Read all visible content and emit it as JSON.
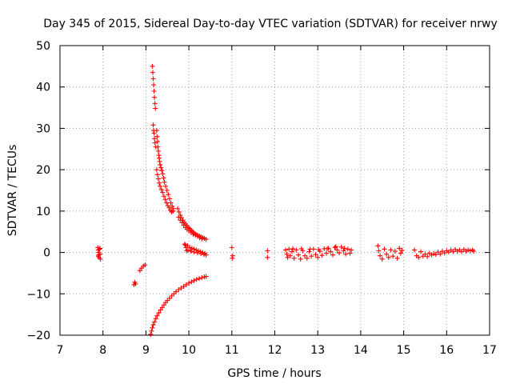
{
  "chart_data": {
    "type": "scatter",
    "title": "Day 345 of 2015, Sidereal Day-to-day VTEC variation (SDTVAR) for receiver nrwy",
    "xlabel": "GPS time / hours",
    "ylabel": "SDTVAR / TECUs",
    "xlim": [
      7,
      17
    ],
    "ylim": [
      -20,
      50
    ],
    "xticks": [
      7,
      8,
      9,
      10,
      11,
      12,
      13,
      14,
      15,
      16,
      17
    ],
    "yticks": [
      -20,
      -10,
      0,
      10,
      20,
      30,
      40,
      50
    ],
    "grid": true,
    "marker": "+",
    "color": "#ff0000",
    "series": [
      {
        "name": "nrwy",
        "points": [
          [
            7.88,
            1.2
          ],
          [
            7.89,
            0.6
          ],
          [
            7.9,
            0.0
          ],
          [
            7.9,
            -0.6
          ],
          [
            7.91,
            -1.2
          ],
          [
            7.92,
            0.8
          ],
          [
            7.93,
            -0.4
          ],
          [
            7.94,
            -1.6
          ],
          [
            7.93,
            1.0
          ],
          [
            7.89,
            -0.9
          ],
          [
            8.72,
            -7.8
          ],
          [
            8.74,
            -7.2
          ],
          [
            8.76,
            -7.6
          ],
          [
            8.86,
            -4.4
          ],
          [
            8.9,
            -3.8
          ],
          [
            8.94,
            -3.3
          ],
          [
            8.98,
            -3.0
          ],
          [
            9.15,
            45.0
          ],
          [
            9.16,
            43.5
          ],
          [
            9.17,
            42.0
          ],
          [
            9.18,
            40.5
          ],
          [
            9.19,
            39.0
          ],
          [
            9.2,
            37.5
          ],
          [
            9.21,
            36.0
          ],
          [
            9.22,
            34.8
          ],
          [
            9.17,
            30.8
          ],
          [
            9.18,
            29.5
          ],
          [
            9.19,
            28.8
          ],
          [
            9.2,
            27.5
          ],
          [
            9.21,
            26.5
          ],
          [
            9.23,
            25.5
          ],
          [
            9.25,
            29.5
          ],
          [
            9.26,
            28.0
          ],
          [
            9.27,
            26.8
          ],
          [
            9.28,
            25.5
          ],
          [
            9.29,
            24.5
          ],
          [
            9.3,
            23.5
          ],
          [
            9.31,
            22.8
          ],
          [
            9.32,
            22.0
          ],
          [
            9.33,
            21.2
          ],
          [
            9.35,
            20.5
          ],
          [
            9.37,
            19.8
          ],
          [
            9.39,
            19.0
          ],
          [
            9.25,
            20.0
          ],
          [
            9.27,
            18.8
          ],
          [
            9.29,
            17.8
          ],
          [
            9.31,
            16.8
          ],
          [
            9.33,
            16.0
          ],
          [
            9.36,
            15.2
          ],
          [
            9.39,
            14.5
          ],
          [
            9.42,
            13.6
          ],
          [
            9.45,
            12.8
          ],
          [
            9.41,
            18.0
          ],
          [
            9.43,
            17.0
          ],
          [
            9.46,
            16.0
          ],
          [
            9.49,
            15.0
          ],
          [
            9.52,
            14.0
          ],
          [
            9.55,
            13.0
          ],
          [
            9.58,
            12.0
          ],
          [
            9.61,
            11.2
          ],
          [
            9.64,
            10.6
          ],
          [
            9.48,
            12.0
          ],
          [
            9.51,
            11.3
          ],
          [
            9.54,
            10.8
          ],
          [
            9.57,
            10.2
          ],
          [
            9.6,
            9.8
          ],
          [
            9.63,
            10.0
          ],
          [
            9.74,
            10.6
          ],
          [
            9.77,
            9.8
          ],
          [
            9.8,
            9.0
          ],
          [
            9.83,
            8.4
          ],
          [
            9.86,
            7.8
          ],
          [
            9.89,
            7.3
          ],
          [
            9.92,
            6.9
          ],
          [
            9.95,
            6.5
          ],
          [
            9.98,
            6.1
          ],
          [
            10.01,
            5.8
          ],
          [
            10.04,
            5.5
          ],
          [
            10.07,
            5.2
          ],
          [
            10.1,
            4.9
          ],
          [
            10.13,
            4.6
          ],
          [
            10.16,
            4.4
          ],
          [
            10.2,
            4.2
          ],
          [
            10.24,
            4.0
          ],
          [
            10.28,
            3.8
          ],
          [
            10.32,
            3.6
          ],
          [
            10.36,
            3.4
          ],
          [
            10.4,
            3.2
          ],
          [
            9.76,
            8.5
          ],
          [
            9.8,
            7.8
          ],
          [
            9.84,
            7.2
          ],
          [
            9.88,
            6.6
          ],
          [
            9.92,
            6.0
          ],
          [
            9.96,
            5.6
          ],
          [
            10.0,
            5.2
          ],
          [
            10.05,
            4.8
          ],
          [
            10.1,
            4.4
          ],
          [
            10.15,
            4.2
          ],
          [
            10.2,
            3.9
          ],
          [
            10.25,
            3.6
          ],
          [
            10.3,
            3.3
          ],
          [
            9.9,
            2.0
          ],
          [
            9.93,
            1.2
          ],
          [
            9.95,
            0.4
          ],
          [
            9.92,
            1.8
          ],
          [
            9.97,
            1.6
          ],
          [
            10.02,
            1.2
          ],
          [
            10.07,
            1.0
          ],
          [
            10.12,
            0.8
          ],
          [
            10.17,
            0.6
          ],
          [
            10.22,
            0.4
          ],
          [
            10.27,
            0.2
          ],
          [
            10.32,
            0.0
          ],
          [
            10.37,
            -0.2
          ],
          [
            9.98,
            0.5
          ],
          [
            10.05,
            0.3
          ],
          [
            10.12,
            0.1
          ],
          [
            10.2,
            -0.1
          ],
          [
            10.28,
            -0.3
          ],
          [
            10.35,
            -0.5
          ],
          [
            10.4,
            -0.6
          ],
          [
            9.11,
            -19.8
          ],
          [
            9.13,
            -19.0
          ],
          [
            9.15,
            -18.2
          ],
          [
            9.17,
            -17.5
          ],
          [
            9.2,
            -16.8
          ],
          [
            9.23,
            -16.0
          ],
          [
            9.26,
            -15.3
          ],
          [
            9.3,
            -14.6
          ],
          [
            9.34,
            -13.9
          ],
          [
            9.38,
            -13.3
          ],
          [
            9.42,
            -12.7
          ],
          [
            9.46,
            -12.1
          ],
          [
            9.5,
            -11.6
          ],
          [
            9.55,
            -11.1
          ],
          [
            9.6,
            -10.5
          ],
          [
            9.65,
            -10.0
          ],
          [
            9.7,
            -9.5
          ],
          [
            9.76,
            -9.0
          ],
          [
            9.82,
            -8.6
          ],
          [
            9.88,
            -8.2
          ],
          [
            9.94,
            -7.8
          ],
          [
            10.0,
            -7.4
          ],
          [
            10.06,
            -7.1
          ],
          [
            10.12,
            -6.8
          ],
          [
            10.18,
            -6.5
          ],
          [
            10.24,
            -6.3
          ],
          [
            10.3,
            -6.1
          ],
          [
            10.36,
            -5.9
          ],
          [
            10.4,
            -5.8
          ],
          [
            11.0,
            1.2
          ],
          [
            11.02,
            -0.8
          ],
          [
            11.01,
            -1.4
          ],
          [
            11.83,
            0.4
          ],
          [
            11.83,
            -1.2
          ],
          [
            12.25,
            0.6
          ],
          [
            12.28,
            -0.4
          ],
          [
            12.3,
            -1.2
          ],
          [
            12.33,
            0.8
          ],
          [
            12.36,
            -0.8
          ],
          [
            12.4,
            0.2
          ],
          [
            12.45,
            -1.4
          ],
          [
            12.5,
            0.6
          ],
          [
            12.55,
            -0.6
          ],
          [
            12.6,
            -1.6
          ],
          [
            12.65,
            0.4
          ],
          [
            12.7,
            -0.8
          ],
          [
            12.75,
            -1.4
          ],
          [
            12.8,
            0.2
          ],
          [
            12.85,
            -0.9
          ],
          [
            12.9,
            0.8
          ],
          [
            12.95,
            -0.5
          ],
          [
            13.0,
            -1.2
          ],
          [
            13.05,
            0.3
          ],
          [
            13.1,
            -0.7
          ],
          [
            13.15,
            0.9
          ],
          [
            13.2,
            -0.2
          ],
          [
            13.25,
            1.0
          ],
          [
            13.3,
            0.2
          ],
          [
            13.35,
            -0.6
          ],
          [
            13.4,
            1.2
          ],
          [
            13.45,
            0.6
          ],
          [
            13.5,
            -0.1
          ],
          [
            13.55,
            1.3
          ],
          [
            13.6,
            0.4
          ],
          [
            13.65,
            -0.4
          ],
          [
            13.7,
            0.8
          ],
          [
            13.75,
            -0.2
          ],
          [
            13.78,
            0.6
          ],
          [
            12.42,
            0.9
          ],
          [
            12.62,
            0.9
          ],
          [
            12.82,
            0.8
          ],
          [
            13.02,
            0.7
          ],
          [
            13.22,
            0.9
          ],
          [
            13.42,
            1.4
          ],
          [
            13.62,
            1.0
          ],
          [
            14.4,
            1.6
          ],
          [
            14.42,
            0.4
          ],
          [
            14.45,
            -0.8
          ],
          [
            14.5,
            -1.6
          ],
          [
            14.55,
            0.8
          ],
          [
            14.6,
            -0.4
          ],
          [
            14.65,
            -1.2
          ],
          [
            14.7,
            0.6
          ],
          [
            14.75,
            -0.9
          ],
          [
            14.8,
            0.3
          ],
          [
            14.85,
            -1.4
          ],
          [
            14.9,
            1.0
          ],
          [
            14.93,
            -0.2
          ],
          [
            14.96,
            0.5
          ],
          [
            15.25,
            0.6
          ],
          [
            15.3,
            -0.8
          ],
          [
            15.35,
            -1.2
          ],
          [
            15.4,
            0.2
          ],
          [
            15.45,
            -0.9
          ],
          [
            15.5,
            -0.4
          ],
          [
            15.55,
            -1.0
          ],
          [
            15.6,
            -0.2
          ],
          [
            15.65,
            -0.6
          ],
          [
            15.7,
            -0.3
          ],
          [
            15.75,
            -0.5
          ],
          [
            15.8,
            0.1
          ],
          [
            15.85,
            -0.4
          ],
          [
            15.9,
            0.3
          ],
          [
            15.95,
            -0.1
          ],
          [
            16.0,
            0.4
          ],
          [
            16.05,
            0.1
          ],
          [
            16.1,
            0.6
          ],
          [
            16.15,
            0.2
          ],
          [
            16.2,
            0.7
          ],
          [
            16.25,
            0.3
          ],
          [
            16.3,
            0.6
          ],
          [
            16.35,
            0.2
          ],
          [
            16.4,
            0.7
          ],
          [
            16.45,
            0.3
          ],
          [
            16.5,
            0.6
          ],
          [
            16.55,
            0.4
          ],
          [
            16.6,
            0.6
          ],
          [
            16.63,
            0.3
          ]
        ]
      }
    ]
  }
}
